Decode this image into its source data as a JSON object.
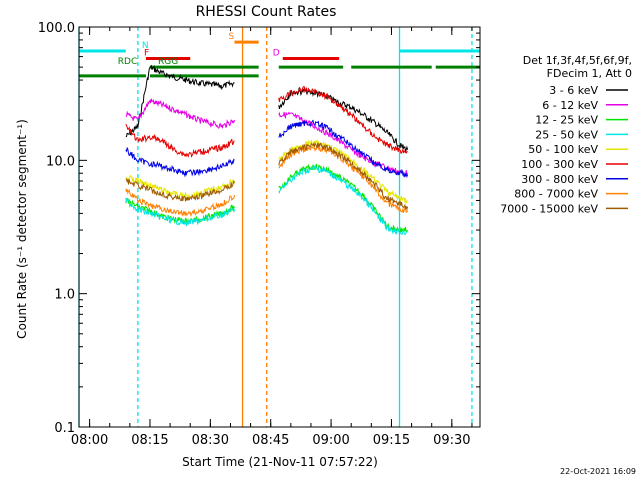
{
  "chart_data": {
    "type": "line",
    "title": "RHESSI Count Rates",
    "xlabel": "Start Time (21-Nov-11 07:57:22)",
    "ylabel": "Count Rate (s⁻¹ detector segment⁻¹)",
    "y_scale": "log",
    "ylim": [
      0.1,
      100.0
    ],
    "xlim": [
      "07:57:22",
      "09:37:00"
    ],
    "x_ticks": [
      "08:00",
      "08:15",
      "08:30",
      "08:45",
      "09:00",
      "09:15",
      "09:30"
    ],
    "y_ticks": [
      "0.1",
      "1.0",
      "10.0",
      "100.0"
    ],
    "grid": false,
    "legend_position": "right",
    "legend_header": [
      "Det 1f,3f,4f,5f,6f,9f,",
      "FDecim 1, Att 0"
    ],
    "footer": "22-Oct-2021 16:09",
    "series": [
      {
        "name": "3 - 6 keV",
        "color": "#000000",
        "x": [
          "08:09",
          "08:12",
          "08:15",
          "08:18",
          "08:21",
          "08:24",
          "08:27",
          "08:30",
          "08:33",
          "08:36",
          "08:47",
          "08:50",
          "08:53",
          "08:56",
          "08:59",
          "09:02",
          "09:05",
          "09:08",
          "09:11",
          "09:14",
          "09:17",
          "09:19"
        ],
        "values": [
          15,
          18,
          50,
          45,
          42,
          40,
          38,
          37,
          36,
          38,
          25,
          32,
          33,
          32,
          30,
          27,
          25,
          22,
          19,
          16,
          13,
          12
        ]
      },
      {
        "name": "6 - 12 keV",
        "color": "#e600e6",
        "x": [
          "08:09",
          "08:12",
          "08:15",
          "08:18",
          "08:21",
          "08:24",
          "08:27",
          "08:30",
          "08:33",
          "08:36",
          "08:47",
          "08:50",
          "08:53",
          "08:56",
          "08:59",
          "09:02",
          "09:05",
          "09:08",
          "09:11",
          "09:14",
          "09:17",
          "09:19"
        ],
        "values": [
          22,
          20,
          28,
          26,
          24,
          22,
          20,
          19,
          18,
          20,
          22,
          22,
          20,
          18,
          16,
          14,
          12,
          10.5,
          9.5,
          8.8,
          8.2,
          8
        ]
      },
      {
        "name": "12 - 25 keV",
        "color": "#00e600",
        "x": [
          "08:09",
          "08:12",
          "08:15",
          "08:18",
          "08:21",
          "08:24",
          "08:27",
          "08:30",
          "08:33",
          "08:36",
          "08:47",
          "08:50",
          "08:53",
          "08:56",
          "08:59",
          "09:02",
          "09:05",
          "09:08",
          "09:11",
          "09:14",
          "09:17",
          "09:19"
        ],
        "values": [
          5,
          4.5,
          4.2,
          3.8,
          3.6,
          3.5,
          3.6,
          3.8,
          4,
          4.5,
          6,
          7.5,
          8.5,
          9,
          8.5,
          7.5,
          6.5,
          5.5,
          4.2,
          3.2,
          3,
          3
        ]
      },
      {
        "name": "25 - 50 keV",
        "color": "#00e6e6",
        "x": [
          "08:09",
          "08:12",
          "08:15",
          "08:18",
          "08:21",
          "08:24",
          "08:27",
          "08:30",
          "08:33",
          "08:36",
          "08:47",
          "08:50",
          "08:53",
          "08:56",
          "08:59",
          "09:02",
          "09:05",
          "09:08",
          "09:11",
          "09:14",
          "09:17",
          "09:19"
        ],
        "values": [
          5,
          4.3,
          4,
          3.7,
          3.5,
          3.4,
          3.5,
          3.7,
          3.9,
          4.3,
          5.8,
          7.2,
          8.2,
          8.7,
          8.2,
          7.2,
          6.2,
          5.2,
          4,
          3.1,
          2.9,
          2.9
        ]
      },
      {
        "name": "50 - 100 keV",
        "color": "#e6e600",
        "x": [
          "08:09",
          "08:12",
          "08:15",
          "08:18",
          "08:21",
          "08:24",
          "08:27",
          "08:30",
          "08:33",
          "08:36",
          "08:47",
          "08:50",
          "08:53",
          "08:56",
          "08:59",
          "09:02",
          "09:05",
          "09:08",
          "09:11",
          "09:14",
          "09:17",
          "09:19"
        ],
        "values": [
          7.5,
          7,
          6.5,
          6,
          5.6,
          5.4,
          5.6,
          6,
          6.3,
          7,
          10,
          12,
          13,
          13.5,
          13,
          11.5,
          10,
          8.5,
          7,
          5.8,
          5.2,
          5
        ]
      },
      {
        "name": "100 - 300 keV",
        "color": "#e60000",
        "x": [
          "08:09",
          "08:12",
          "08:15",
          "08:18",
          "08:21",
          "08:24",
          "08:27",
          "08:30",
          "08:33",
          "08:36",
          "08:47",
          "08:50",
          "08:53",
          "08:56",
          "08:59",
          "09:02",
          "09:05",
          "09:08",
          "09:11",
          "09:14",
          "09:17",
          "09:19"
        ],
        "values": [
          18,
          14,
          15,
          14,
          12,
          11,
          11.5,
          12,
          12.5,
          14,
          28,
          32,
          34,
          33,
          30,
          26,
          22,
          18,
          15,
          13,
          12,
          11.5
        ]
      },
      {
        "name": "300 - 800 keV",
        "color": "#0000e6",
        "x": [
          "08:09",
          "08:12",
          "08:15",
          "08:18",
          "08:21",
          "08:24",
          "08:27",
          "08:30",
          "08:33",
          "08:36",
          "08:47",
          "08:50",
          "08:53",
          "08:56",
          "08:59",
          "09:02",
          "09:05",
          "09:08",
          "09:11",
          "09:14",
          "09:17",
          "09:19"
        ],
        "values": [
          12,
          10,
          9.5,
          9,
          8.5,
          8,
          8.2,
          8.6,
          9,
          10,
          15,
          18,
          19,
          19,
          17.5,
          15,
          13,
          11,
          9.5,
          8.5,
          8,
          7.8
        ]
      },
      {
        "name": "800 - 7000 keV",
        "color": "#ff8000",
        "x": [
          "08:09",
          "08:12",
          "08:15",
          "08:18",
          "08:21",
          "08:24",
          "08:27",
          "08:30",
          "08:33",
          "08:36",
          "08:47",
          "08:50",
          "08:53",
          "08:56",
          "08:59",
          "09:02",
          "09:05",
          "09:08",
          "09:11",
          "09:14",
          "09:17",
          "09:19"
        ],
        "values": [
          6,
          5,
          4.6,
          4.3,
          4.1,
          4,
          4.1,
          4.4,
          4.7,
          5.5,
          9,
          11,
          12,
          12.5,
          12,
          10.5,
          9,
          7.5,
          6,
          4.8,
          4.3,
          4.2
        ]
      },
      {
        "name": "7000 - 15000 keV",
        "color": "#a05a00",
        "x": [
          "08:09",
          "08:12",
          "08:15",
          "08:18",
          "08:21",
          "08:24",
          "08:27",
          "08:30",
          "08:33",
          "08:36",
          "08:47",
          "08:50",
          "08:53",
          "08:56",
          "08:59",
          "09:02",
          "09:05",
          "09:08",
          "09:11",
          "09:14",
          "09:17",
          "09:19"
        ],
        "values": [
          7,
          6.5,
          6,
          5.6,
          5.3,
          5.1,
          5.3,
          5.7,
          6,
          6.8,
          9.5,
          11.5,
          12.5,
          13,
          12.5,
          11,
          9.5,
          8,
          6.5,
          5.2,
          4.7,
          4.5
        ]
      }
    ],
    "annotations": [
      {
        "label": "N",
        "color": "#00e6e6",
        "x_start": "07:57:22",
        "x_end": "08:09"
      },
      {
        "label": "F",
        "color": "#e60000",
        "x_start": "08:15",
        "x_end": "08:25"
      },
      {
        "label": "S",
        "color": "#ff8000",
        "x_start": "08:36",
        "x_end": "08:42"
      },
      {
        "label": "D",
        "color": "#e600e6",
        "x_start": "08:47",
        "x_end": "08:48"
      },
      {
        "label": "RDC",
        "color": "#008000",
        "x_start": "07:57:22",
        "x_end": "08:14"
      },
      {
        "label": "RGG",
        "color": "#008000",
        "x_start": "08:15",
        "x_end": "08:42"
      }
    ],
    "flare_bars": [
      {
        "color": "#e60000",
        "x_start": "08:14",
        "x_end": "08:25"
      },
      {
        "color": "#e60000",
        "x_start": "08:48",
        "x_end": "09:02"
      },
      {
        "color": "#00e6e6",
        "x_start": "09:17",
        "x_end": "09:37"
      }
    ],
    "night_bars": [
      {
        "x_start": "08:15",
        "x_end": "08:42"
      },
      {
        "x_start": "08:47",
        "x_end": "09:03"
      },
      {
        "x_start": "09:05",
        "x_end": "09:25"
      },
      {
        "x_start": "09:26",
        "x_end": "09:37"
      }
    ],
    "attenuator_bars": [
      {
        "x_start": "07:57:22",
        "x_end": "08:14"
      },
      {
        "x_start": "08:15",
        "x_end": "08:42"
      }
    ],
    "vlines": [
      {
        "x": "07:57:22",
        "color": "#00e6e6",
        "dash": false
      },
      {
        "x": "08:12",
        "color": "#00e6e6",
        "dash": true
      },
      {
        "x": "08:38",
        "color": "#ff8000",
        "dash": false
      },
      {
        "x": "08:44",
        "color": "#ff8000",
        "dash": true
      },
      {
        "x": "09:17",
        "color": "#00e6e6",
        "dash": false
      },
      {
        "x": "09:35",
        "color": "#00e6e6",
        "dash": true
      }
    ]
  }
}
